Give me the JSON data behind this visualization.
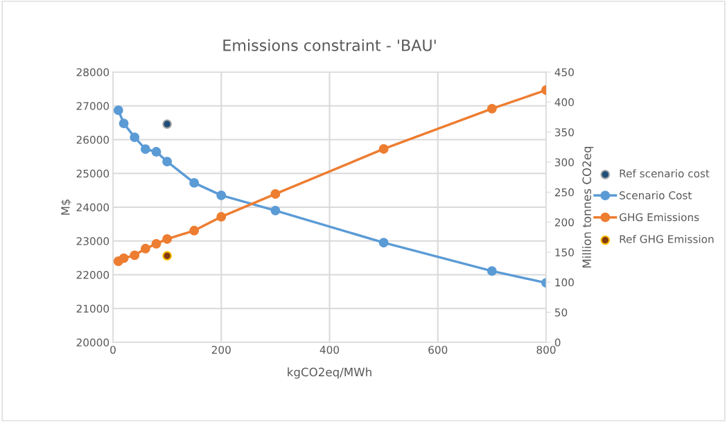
{
  "chart_data": {
    "type": "line",
    "title": "Emissions constraint - 'BAU'",
    "xlabel": "kgCO2eq/MWh",
    "ylabel": "M$",
    "y2label": "Million tonnes CO2eq",
    "xlim": [
      0,
      800
    ],
    "xticks": [
      0,
      200,
      400,
      600,
      800
    ],
    "ylim": [
      20000,
      28000
    ],
    "yticks": [
      20000,
      21000,
      22000,
      23000,
      24000,
      25000,
      26000,
      27000,
      28000
    ],
    "y2lim": [
      0,
      450
    ],
    "y2ticks": [
      0,
      50,
      100,
      150,
      200,
      250,
      300,
      350,
      400,
      450
    ],
    "grid": true,
    "legend": "right",
    "marker": "circle",
    "line_style": "solid",
    "series": [
      {
        "name": "Ref scenario cost",
        "type": "scatter",
        "color": "#1f4e79",
        "x": [
          100
        ],
        "values": [
          26460
        ]
      },
      {
        "name": "Scenario Cost",
        "color": "#5b9bd5",
        "x": [
          10,
          20,
          40,
          60,
          80,
          100,
          150,
          200,
          300,
          500,
          700,
          800
        ],
        "values": [
          26870,
          26480,
          26070,
          25720,
          25640,
          25350,
          24720,
          24350,
          23900,
          22950,
          22110,
          21760
        ]
      },
      {
        "name": "GHG Emissions",
        "color": "#ed7d31",
        "axis": "y2",
        "x": [
          10,
          20,
          40,
          60,
          80,
          100,
          150,
          200,
          300,
          500,
          700,
          800
        ],
        "values": [
          135,
          140,
          145,
          156,
          164,
          172,
          186,
          209,
          247,
          322,
          389,
          420
        ]
      },
      {
        "name": "Ref GHG Emission",
        "type": "scatter",
        "color": "#843c0c",
        "axis": "y2",
        "x": [
          100
        ],
        "values": [
          144
        ]
      }
    ]
  }
}
